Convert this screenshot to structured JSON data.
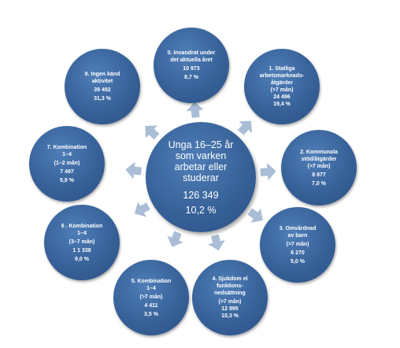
{
  "center": {
    "lines": [
      "Unga 16–25 år",
      "som varken",
      "arbetar eller",
      "studerar"
    ],
    "number": "126 349",
    "percent": "10,2 %"
  },
  "nodes": [
    {
      "lines": [
        "0. Invandrat under",
        "det aktuella året"
      ],
      "number": "10 973",
      "percent": "8,7 %"
    },
    {
      "lines": [
        "1. Statliga",
        "arbetsmarknads-",
        "åtgärder",
        "(>7 mån)"
      ],
      "number": "24 496",
      "percent": "19,4 %"
    },
    {
      "lines": [
        "2. Kommunala",
        "stöd/åtgärder",
        "(>7 mån)"
      ],
      "number": "8 877",
      "percent": "7,0 %"
    },
    {
      "lines": [
        "3. Omvårdnad",
        "av barn",
        "(>7 mån)"
      ],
      "number": "6 270",
      "percent": "5,0 %"
    },
    {
      "lines": [
        "4. Sjukdom el",
        "funktions-",
        "nedsättning",
        "(>7 mån)"
      ],
      "number": "12 995",
      "percent": "10,3 %"
    },
    {
      "lines": [
        "5. Kombination",
        "1–4",
        "(>7 mån)"
      ],
      "number": "4 411",
      "percent": "3,5 %"
    },
    {
      "lines": [
        "6 . Kombination",
        "1–4",
        "(3–7 mån)"
      ],
      "number": "1 1 338",
      "percent": "9,0 %"
    },
    {
      "lines": [
        "7. Kombination",
        "1–4",
        "(1–2 mån)"
      ],
      "number": "7 497",
      "percent": "5,9 %"
    },
    {
      "lines": [
        "8. Ingen känd",
        "aktivitet"
      ],
      "number": "39 492",
      "percent": "31,3 %"
    }
  ],
  "colors": {
    "circle": "#355f96",
    "arrow": "#a9bdd6"
  }
}
